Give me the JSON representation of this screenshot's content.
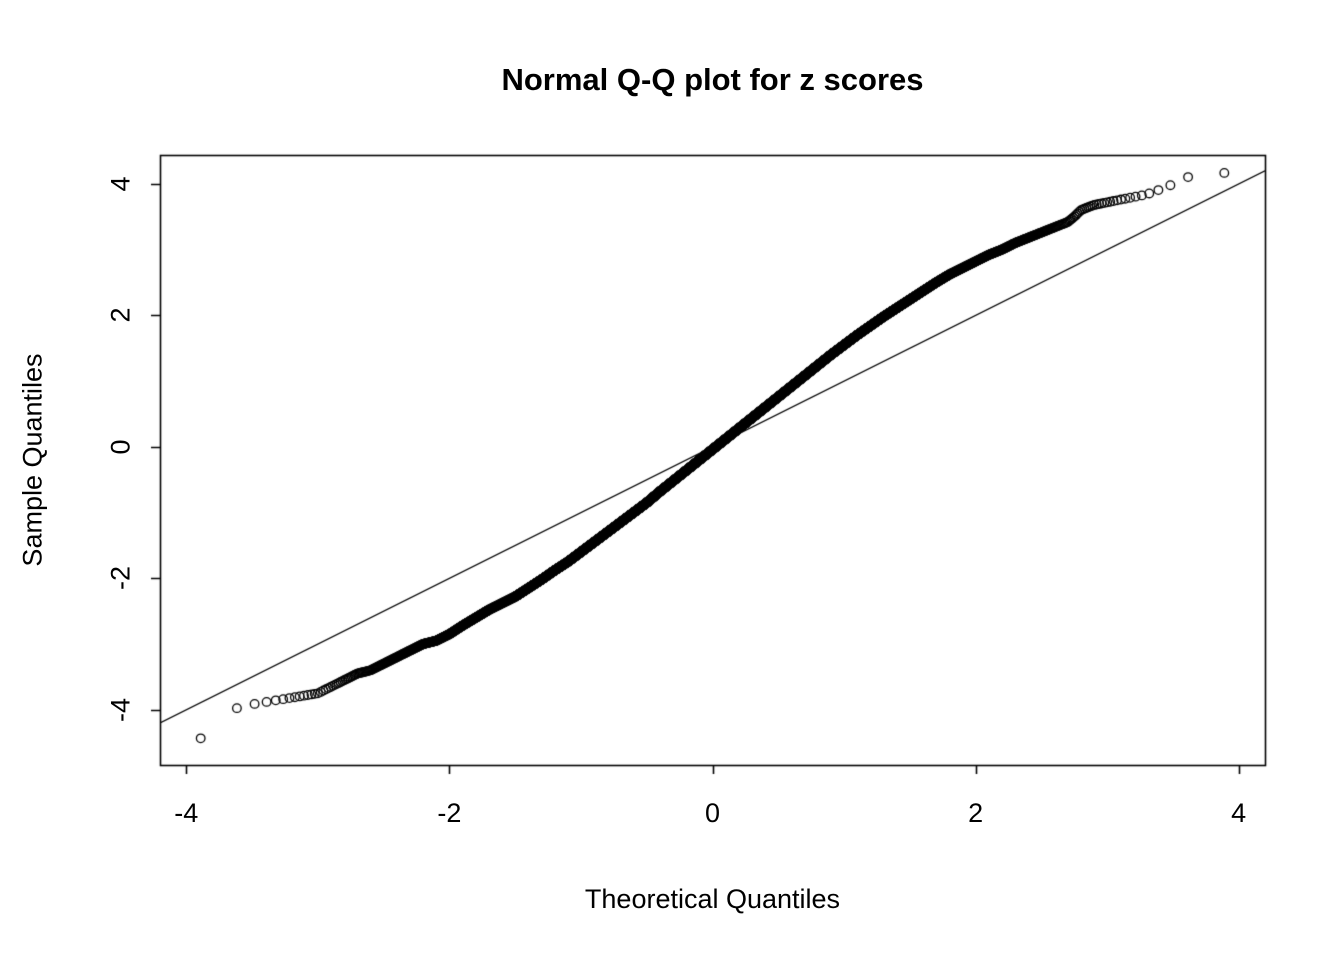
{
  "chart_data": {
    "type": "scatter",
    "title": "Normal Q-Q plot for z scores",
    "xlabel": "Theoretical Quantiles",
    "ylabel": "Sample Quantiles",
    "xlim": [
      -4.2,
      4.2
    ],
    "ylim": [
      -4.84,
      4.44
    ],
    "x_ticks": [
      -4,
      -2,
      0,
      2,
      4
    ],
    "y_ticks": [
      -4,
      -2,
      0,
      2,
      4
    ],
    "grid": false,
    "legend": "none",
    "marker": "open-circle",
    "marker_color": "#000000",
    "n_points": 10000,
    "reference_line": {
      "slope": 1,
      "intercept": 0,
      "color": "#000000"
    },
    "curve_knots": [
      [
        -3.9,
        -4.45
      ],
      [
        -3.6,
        -3.95
      ],
      [
        -3.45,
        -3.9
      ],
      [
        -3.3,
        -3.85
      ],
      [
        -3.15,
        -3.8
      ],
      [
        -3.0,
        -3.75
      ],
      [
        -2.9,
        -3.65
      ],
      [
        -2.8,
        -3.55
      ],
      [
        -2.7,
        -3.45
      ],
      [
        -2.6,
        -3.4
      ],
      [
        -2.5,
        -3.3
      ],
      [
        -2.4,
        -3.2
      ],
      [
        -2.3,
        -3.1
      ],
      [
        -2.2,
        -3.0
      ],
      [
        -2.1,
        -2.95
      ],
      [
        -2.0,
        -2.85
      ],
      [
        -1.9,
        -2.72
      ],
      [
        -1.8,
        -2.6
      ],
      [
        -1.7,
        -2.48
      ],
      [
        -1.6,
        -2.38
      ],
      [
        -1.5,
        -2.28
      ],
      [
        -1.4,
        -2.15
      ],
      [
        -1.3,
        -2.02
      ],
      [
        -1.2,
        -1.88
      ],
      [
        -1.1,
        -1.75
      ],
      [
        -1.0,
        -1.6
      ],
      [
        -0.9,
        -1.45
      ],
      [
        -0.8,
        -1.3
      ],
      [
        -0.7,
        -1.15
      ],
      [
        -0.6,
        -1.0
      ],
      [
        -0.5,
        -0.85
      ],
      [
        -0.4,
        -0.68
      ],
      [
        -0.3,
        -0.52
      ],
      [
        -0.2,
        -0.36
      ],
      [
        -0.1,
        -0.2
      ],
      [
        0.0,
        -0.04
      ],
      [
        0.1,
        0.12
      ],
      [
        0.2,
        0.28
      ],
      [
        0.3,
        0.44
      ],
      [
        0.4,
        0.6
      ],
      [
        0.5,
        0.76
      ],
      [
        0.6,
        0.92
      ],
      [
        0.7,
        1.08
      ],
      [
        0.8,
        1.24
      ],
      [
        0.9,
        1.4
      ],
      [
        1.0,
        1.55
      ],
      [
        1.1,
        1.7
      ],
      [
        1.2,
        1.84
      ],
      [
        1.3,
        1.98
      ],
      [
        1.4,
        2.11
      ],
      [
        1.5,
        2.24
      ],
      [
        1.6,
        2.37
      ],
      [
        1.7,
        2.5
      ],
      [
        1.8,
        2.62
      ],
      [
        1.9,
        2.72
      ],
      [
        2.0,
        2.82
      ],
      [
        2.1,
        2.92
      ],
      [
        2.2,
        3.0
      ],
      [
        2.3,
        3.1
      ],
      [
        2.4,
        3.18
      ],
      [
        2.5,
        3.26
      ],
      [
        2.6,
        3.34
      ],
      [
        2.7,
        3.42
      ],
      [
        2.75,
        3.5
      ],
      [
        2.8,
        3.6
      ],
      [
        2.9,
        3.68
      ],
      [
        3.0,
        3.72
      ],
      [
        3.1,
        3.76
      ],
      [
        3.2,
        3.8
      ],
      [
        3.3,
        3.84
      ],
      [
        3.45,
        3.95
      ],
      [
        3.6,
        4.1
      ],
      [
        3.9,
        4.17
      ]
    ]
  }
}
